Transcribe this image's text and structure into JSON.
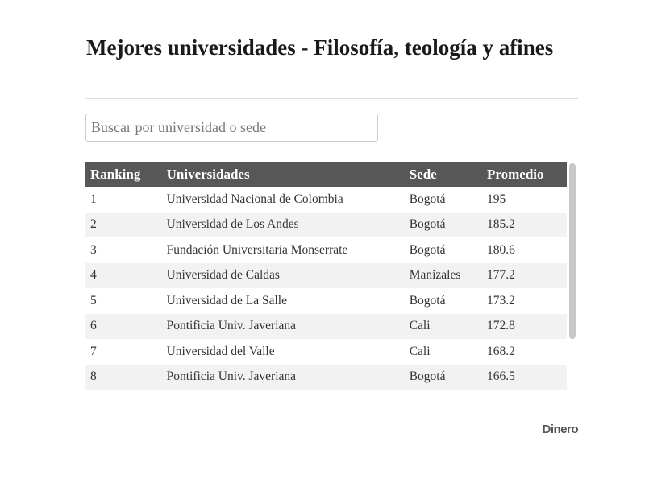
{
  "header": {
    "title": "Mejores universidades - Filosofía, teología y afines"
  },
  "search": {
    "placeholder": "Buscar por universidad o sede"
  },
  "table": {
    "columns": [
      "Ranking",
      "Universidades",
      "Sede",
      "Promedio"
    ],
    "rows": [
      [
        1,
        "Universidad Nacional de Colombia",
        "Bogotá",
        195
      ],
      [
        2,
        "Universidad de Los Andes",
        "Bogotá",
        185.2
      ],
      [
        3,
        "Fundación Universitaria Monserrate",
        "Bogotá",
        180.6
      ],
      [
        4,
        "Universidad de Caldas",
        "Manizales",
        177.2
      ],
      [
        5,
        "Universidad de La Salle",
        "Bogotá",
        173.2
      ],
      [
        6,
        "Pontificia Univ. Javeriana",
        "Cali",
        172.8
      ],
      [
        7,
        "Universidad del Valle",
        "Cali",
        168.2
      ],
      [
        8,
        "Pontificia Univ. Javeriana",
        "Bogotá",
        166.5
      ]
    ]
  },
  "footer": {
    "logo": "Dinero"
  }
}
